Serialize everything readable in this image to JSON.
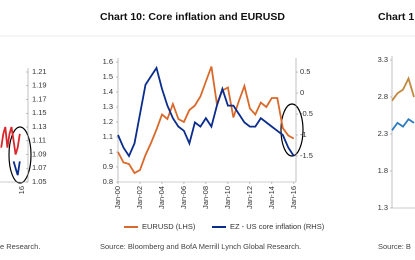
{
  "chart_data": [
    {
      "type": "line",
      "x": [
        2015.0,
        2015.1,
        2015.2,
        2015.3,
        2015.4,
        2015.5,
        2015.6,
        2015.7,
        2015.8,
        2015.9
      ],
      "xlim": [
        2013,
        2016.3
      ],
      "xticks": [
        {
          "value": 2016,
          "label": "16"
        }
      ],
      "ylim": [
        1.05,
        1.21
      ],
      "yticks": [
        1.21,
        1.19,
        1.17,
        1.15,
        1.13,
        1.11,
        1.09,
        1.07,
        1.05
      ],
      "series": [
        {
          "name": null,
          "color": "#d9262b",
          "values": [
            1.1,
            1.12,
            1.13,
            1.1,
            1.12,
            1.13,
            1.11,
            1.09,
            1.1,
            1.12
          ]
        },
        {
          "name": null,
          "color": "#0a2c8c",
          "values": [
            null,
            null,
            null,
            null,
            null,
            null,
            1.08,
            1.07,
            1.06,
            1.08
          ]
        }
      ],
      "source": "e Research."
    },
    {
      "type": "line",
      "title": "Chart 10: Core inflation and EURUSD",
      "x": [
        2000,
        2000.5,
        2001,
        2001.5,
        2002,
        2002.5,
        2003,
        2003.5,
        2004,
        2004.5,
        2005,
        2005.5,
        2006,
        2006.5,
        2007,
        2007.5,
        2008,
        2008.5,
        2009,
        2009.5,
        2010,
        2010.5,
        2011,
        2011.5,
        2012,
        2012.5,
        2013,
        2013.5,
        2014,
        2014.5,
        2015,
        2015.5,
        2016
      ],
      "xlim": [
        2000,
        2016.2
      ],
      "xticks": [
        {
          "value": 2000,
          "label": "Jan-00"
        },
        {
          "value": 2002,
          "label": "Jan-02"
        },
        {
          "value": 2004,
          "label": "Jan-04"
        },
        {
          "value": 2006,
          "label": "Jan-06"
        },
        {
          "value": 2008,
          "label": "Jan-08"
        },
        {
          "value": 2010,
          "label": "Jan-10"
        },
        {
          "value": 2012,
          "label": "Jan-12"
        },
        {
          "value": 2014,
          "label": "Jan-14"
        },
        {
          "value": 2016,
          "label": "Jan-16"
        }
      ],
      "ylim": [
        0.8,
        1.6
      ],
      "yticks": [
        1.6,
        1.5,
        1.4,
        1.3,
        1.2,
        1.1,
        1,
        0.9,
        0.8
      ],
      "y2lim": [
        -2.12,
        0.74
      ],
      "y2ticks": [
        0.5,
        0,
        -0.5,
        -1,
        -1.5
      ],
      "series": [
        {
          "name": "EURUSD (LHS)",
          "color": "#d9692b",
          "values": [
            1.0,
            0.93,
            0.92,
            0.86,
            0.88,
            0.98,
            1.06,
            1.15,
            1.25,
            1.22,
            1.32,
            1.22,
            1.2,
            1.28,
            1.31,
            1.37,
            1.47,
            1.57,
            1.32,
            1.41,
            1.43,
            1.23,
            1.34,
            1.44,
            1.29,
            1.25,
            1.33,
            1.3,
            1.36,
            1.36,
            1.16,
            1.11,
            1.09
          ]
        },
        {
          "name": "EZ - US core inflation (RHS)",
          "color": "#0a2c8c",
          "axis": "y2",
          "values": [
            -1.0,
            -1.3,
            -1.5,
            -1.2,
            -0.5,
            0.2,
            0.4,
            0.6,
            0.1,
            -0.3,
            -0.6,
            -0.8,
            -0.9,
            -1.2,
            -0.7,
            -0.8,
            -0.6,
            -0.8,
            -0.3,
            0.1,
            -0.3,
            -0.3,
            -0.5,
            -0.7,
            -0.8,
            -0.8,
            -0.6,
            -0.7,
            -0.8,
            -0.9,
            -1.0,
            -1.3,
            -1.5
          ]
        }
      ],
      "source": "Source: Bloomberg and BofA Merrill Lynch Global Research."
    },
    {
      "type": "line",
      "title": "Chart 1",
      "x": [
        2000,
        2000.25,
        2000.5,
        2000.75,
        2001
      ],
      "xlim": [
        2000,
        2014
      ],
      "ylim": [
        1.3,
        3.3
      ],
      "yticks": [
        3.3,
        2.8,
        2.3,
        1.8,
        1.3
      ],
      "series": [
        {
          "name": null,
          "color": "#c0883c",
          "values": [
            2.75,
            2.85,
            2.9,
            3.05,
            2.8
          ]
        },
        {
          "name": null,
          "color": "#2e7bbf",
          "values": [
            2.35,
            2.45,
            2.4,
            2.5,
            2.45
          ]
        }
      ],
      "source": "Source: B"
    }
  ]
}
